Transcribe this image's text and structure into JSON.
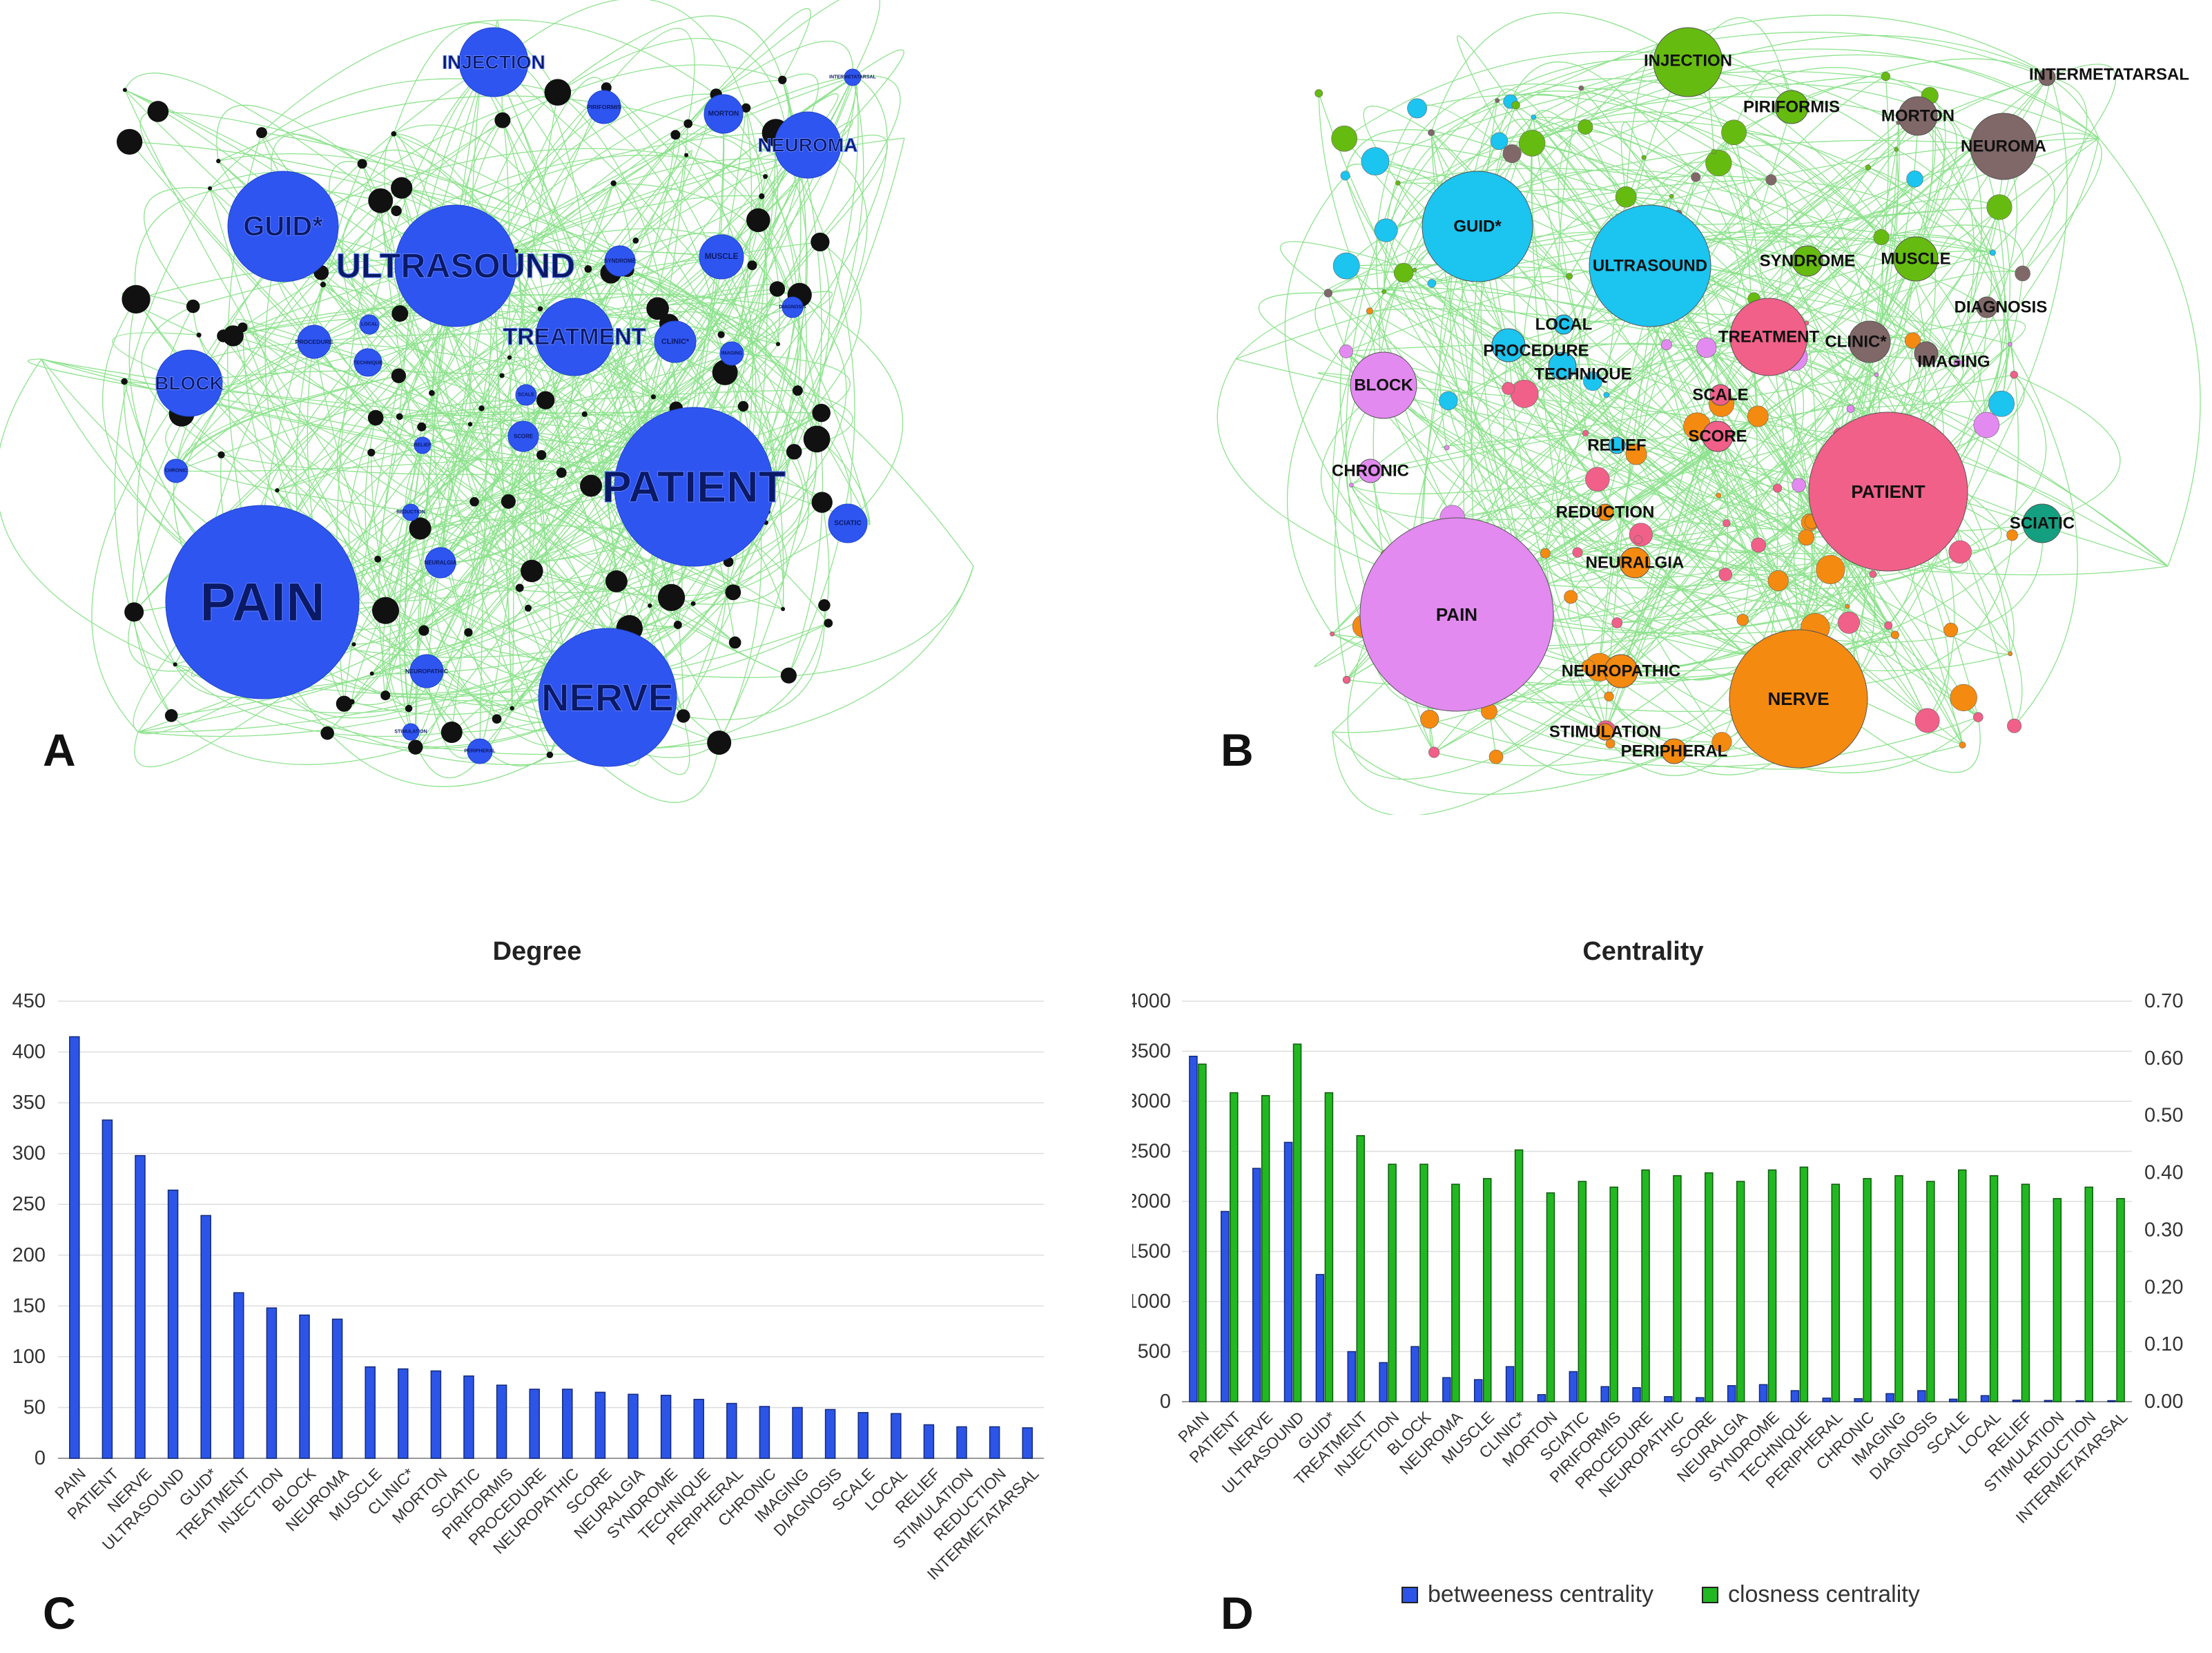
{
  "panel_letters": {
    "a": "A",
    "b": "B",
    "c": "C",
    "d": "D"
  },
  "colors": {
    "edge": "#33cc33",
    "node_a": "#2f55f0",
    "node_a_black": "#111111",
    "bar_degree": "#2c55e8",
    "bar_betweeness": "#2c55e8",
    "bar_closness": "#22b822",
    "pink": "#f06088",
    "violet": "#e28af0",
    "cyan": "#1cc4f0",
    "orange": "#f58a10",
    "lime": "#66bb10",
    "brown": "#806868",
    "teal": "#14a080"
  },
  "network_a": {
    "nodes": [
      {
        "label": "PAIN",
        "size": 415
      },
      {
        "label": "PATIENT",
        "size": 333
      },
      {
        "label": "NERVE",
        "size": 298
      },
      {
        "label": "ULTRASOUND",
        "size": 264
      },
      {
        "label": "GUID*",
        "size": 239
      },
      {
        "label": "TREATMENT",
        "size": 163
      },
      {
        "label": "INJECTION",
        "size": 148
      },
      {
        "label": "BLOCK",
        "size": 141
      },
      {
        "label": "NEUROMA",
        "size": 137
      },
      {
        "label": "MUSCLE",
        "size": 90
      },
      {
        "label": "CLINIC*",
        "size": 88
      },
      {
        "label": "MORTON",
        "size": 86
      },
      {
        "label": "SCIATIC",
        "size": 81
      },
      {
        "label": "PIRIFORMIS",
        "size": 72
      },
      {
        "label": "PROCEDURE",
        "size": 68
      },
      {
        "label": "NEUROPATHIC",
        "size": 68
      },
      {
        "label": "SCORE",
        "size": 65
      },
      {
        "label": "NEURALGIA",
        "size": 63
      },
      {
        "label": "SYNDROME",
        "size": 62
      },
      {
        "label": "TECHNIQUE",
        "size": 58
      },
      {
        "label": "PERIPHERAL",
        "size": 54
      },
      {
        "label": "CHRONIC",
        "size": 51
      },
      {
        "label": "IMAGING",
        "size": 50
      },
      {
        "label": "DIAGNOSIS",
        "size": 48
      },
      {
        "label": "SCALE",
        "size": 45
      },
      {
        "label": "LOCAL",
        "size": 44
      },
      {
        "label": "RELIEF",
        "size": 33
      },
      {
        "label": "STIMULATION",
        "size": 31
      },
      {
        "label": "REDUCTION",
        "size": 31
      },
      {
        "label": "INTERMETATARSAL",
        "size": 30
      }
    ]
  },
  "network_b": {
    "clusters": [
      {
        "color": "violet",
        "labels": [
          "PAIN",
          "BLOCK",
          "CHRONIC"
        ]
      },
      {
        "color": "pink",
        "labels": [
          "PATIENT",
          "TREATMENT",
          "SCALE",
          "SCORE"
        ]
      },
      {
        "color": "orange",
        "labels": [
          "NERVE",
          "NEURALGIA",
          "REDUCTION",
          "NEUROPATHIC",
          "STIMULATION",
          "PERIPHERAL"
        ]
      },
      {
        "color": "cyan",
        "labels": [
          "ULTRASOUND",
          "GUID*",
          "LOCAL",
          "PROCEDURE",
          "TECHNIQUE",
          "RELIEF"
        ]
      },
      {
        "color": "lime",
        "labels": [
          "INJECTION",
          "PIRIFORMIS",
          "SYNDROME",
          "MUSCLE"
        ]
      },
      {
        "color": "brown",
        "labels": [
          "NEUROMA",
          "MORTON",
          "INTERMETATARSAL",
          "DIAGNOSIS",
          "CLINIC*",
          "IMAGING"
        ]
      },
      {
        "color": "teal",
        "labels": [
          "SCIATIC"
        ]
      }
    ]
  },
  "chart_data": [
    {
      "type": "bar",
      "title": "Degree",
      "categories": [
        "PAIN",
        "PATIENT",
        "NERVE",
        "ULTRASOUND",
        "GUID*",
        "TREATMENT",
        "INJECTION",
        "BLOCK",
        "NEUROMA",
        "MUSCLE",
        "CLINIC*",
        "MORTON",
        "SCIATIC",
        "PIRIFORMIS",
        "PROCEDURE",
        "NEUROPATHIC",
        "SCORE",
        "NEURALGIA",
        "SYNDROME",
        "TECHNIQUE",
        "PERIPHERAL",
        "CHRONIC",
        "IMAGING",
        "DIAGNOSIS",
        "SCALE",
        "LOCAL",
        "RELIEF",
        "STIMULATION",
        "REDUCTION",
        "INTERMETATARSAL"
      ],
      "values": [
        415,
        333,
        298,
        264,
        239,
        163,
        148,
        141,
        137,
        90,
        88,
        86,
        81,
        72,
        68,
        68,
        65,
        63,
        62,
        58,
        54,
        51,
        50,
        48,
        45,
        44,
        33,
        31,
        31,
        30
      ],
      "xlabel": "",
      "ylabel": "",
      "ylim": [
        0,
        450
      ],
      "yticks": [
        0,
        50,
        100,
        150,
        200,
        250,
        300,
        350,
        400,
        450
      ],
      "grid": true,
      "legend": "none"
    },
    {
      "type": "bar",
      "title": "Centrality",
      "categories": [
        "PAIN",
        "PATIENT",
        "NERVE",
        "ULTRASOUND",
        "GUID*",
        "TREATMENT",
        "INJECTION",
        "BLOCK",
        "NEUROMA",
        "MUSCLE",
        "CLINIC*",
        "MORTON",
        "SCIATIC",
        "PIRIFORMIS",
        "PROCEDURE",
        "NEUROPATHIC",
        "SCORE",
        "NEURALGIA",
        "SYNDROME",
        "TECHNIQUE",
        "PERIPHERAL",
        "CHRONIC",
        "IMAGING",
        "DIAGNOSIS",
        "SCALE",
        "LOCAL",
        "RELIEF",
        "STIMULATION",
        "REDUCTION",
        "INTERMETATARSAL"
      ],
      "series": [
        {
          "name": "betweeness centrality",
          "axis": "left",
          "values": [
            3450,
            1900,
            2330,
            2590,
            1270,
            500,
            390,
            550,
            240,
            220,
            350,
            70,
            300,
            150,
            140,
            50,
            40,
            160,
            170,
            110,
            35,
            30,
            80,
            110,
            25,
            60,
            15,
            12,
            10,
            10
          ]
        },
        {
          "name": "closness centrality",
          "axis": "right",
          "values": [
            0.59,
            0.54,
            0.535,
            0.625,
            0.54,
            0.465,
            0.415,
            0.415,
            0.38,
            0.39,
            0.44,
            0.365,
            0.385,
            0.375,
            0.405,
            0.395,
            0.4,
            0.385,
            0.405,
            0.41,
            0.38,
            0.39,
            0.395,
            0.385,
            0.405,
            0.395,
            0.38,
            0.355,
            0.375,
            0.355
          ]
        }
      ],
      "ylim_left": [
        0,
        4000
      ],
      "yticks_left": [
        0,
        500,
        1000,
        1500,
        2000,
        2500,
        3000,
        3500,
        4000
      ],
      "ylim_right": [
        0,
        0.7
      ],
      "yticks_right": [
        "0.00",
        "0.10",
        "0.20",
        "0.30",
        "0.40",
        "0.50",
        "0.60",
        "0.70"
      ],
      "grid": true,
      "legend": "bottom"
    }
  ]
}
